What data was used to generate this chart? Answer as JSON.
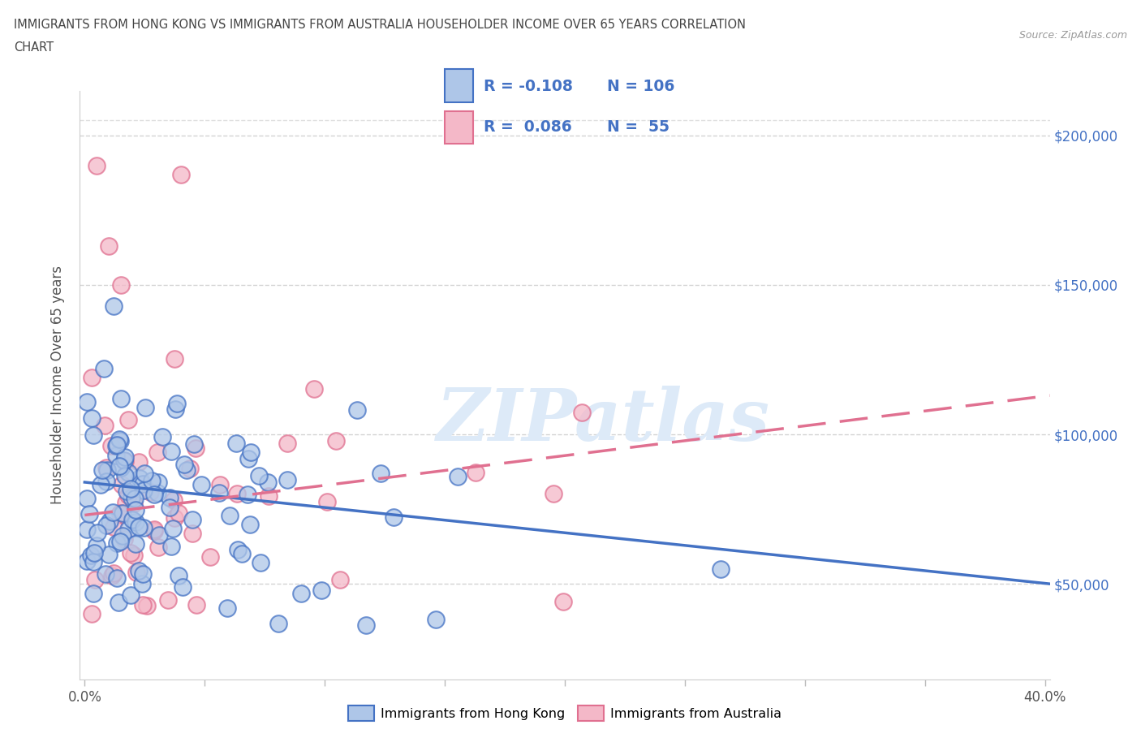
{
  "title_line1": "IMMIGRANTS FROM HONG KONG VS IMMIGRANTS FROM AUSTRALIA HOUSEHOLDER INCOME OVER 65 YEARS CORRELATION",
  "title_line2": "CHART",
  "source": "Source: ZipAtlas.com",
  "ylabel": "Householder Income Over 65 years",
  "xlim": [
    -0.002,
    0.402
  ],
  "ylim": [
    18000,
    215000
  ],
  "ytick_vals": [
    50000,
    100000,
    150000,
    200000
  ],
  "ytick_labels": [
    "$50,000",
    "$100,000",
    "$150,000",
    "$200,000"
  ],
  "hk_color": "#aec6e8",
  "aus_color": "#f4b8c8",
  "hk_line_color": "#4472c4",
  "aus_line_color": "#e07090",
  "hk_R": -0.108,
  "hk_N": 106,
  "aus_R": 0.086,
  "aus_N": 55,
  "grid_color": "#c8c8c8",
  "background_color": "#ffffff",
  "watermark_text": "ZIPatlas",
  "legend_label_hk": "Immigrants from Hong Kong",
  "legend_label_aus": "Immigrants from Australia",
  "hk_trend_x0": 0.0,
  "hk_trend_y0": 84000,
  "hk_trend_x1": 0.402,
  "hk_trend_y1": 50000,
  "aus_trend_x0": 0.0,
  "aus_trend_y0": 73000,
  "aus_trend_x1": 0.402,
  "aus_trend_y1": 113000
}
